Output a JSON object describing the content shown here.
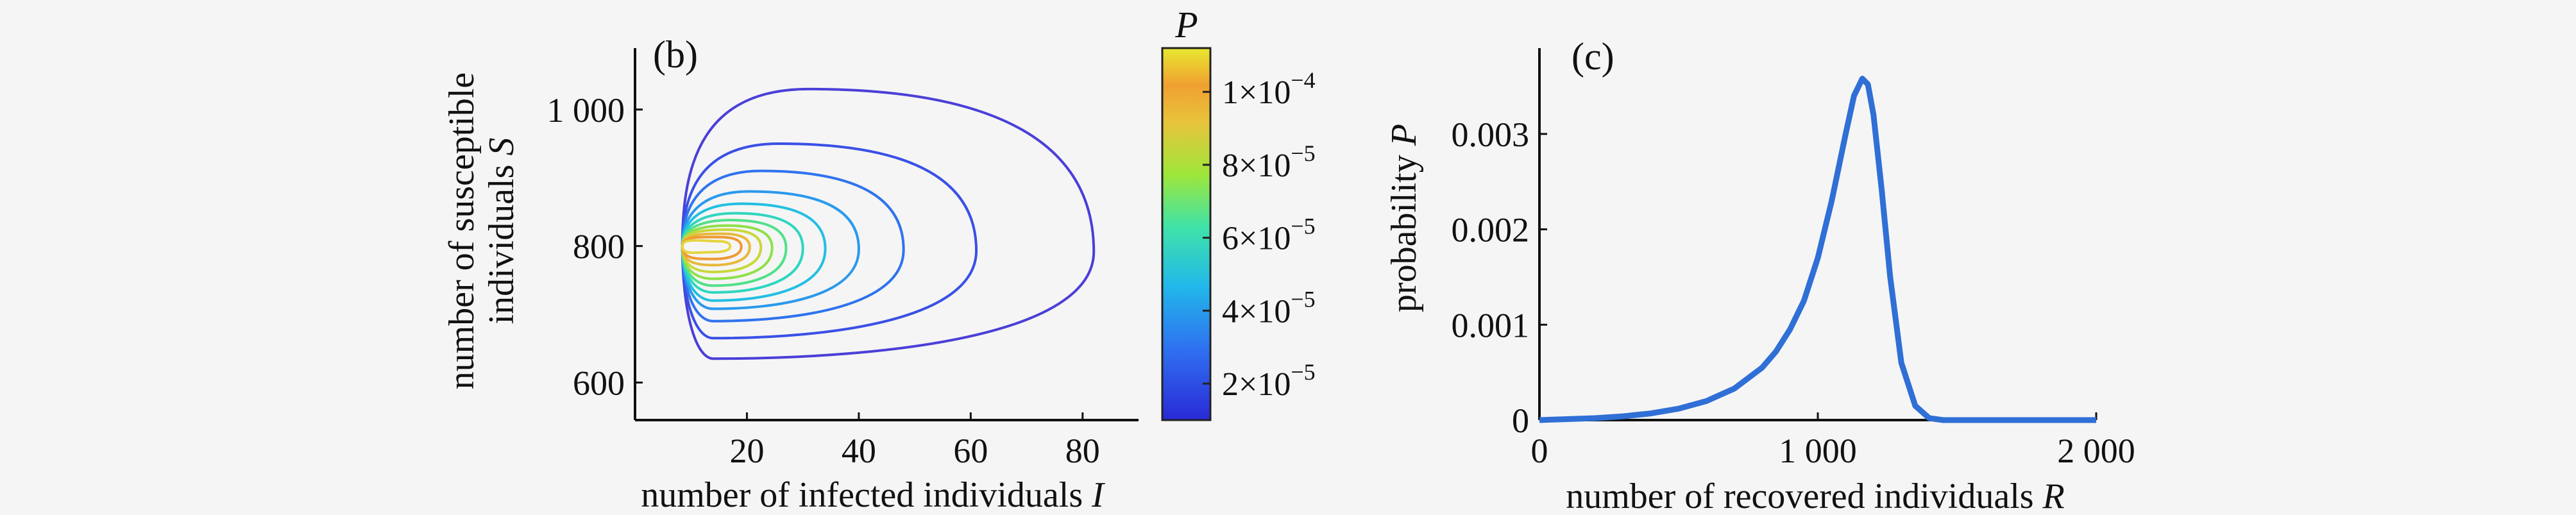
{
  "chart_data": [
    {
      "panel": "(b)",
      "type": "contour",
      "x": {
        "label": "number of infected individuals",
        "symbol": "I",
        "ticks": [
          20,
          40,
          60,
          80
        ],
        "range": [
          0,
          90
        ]
      },
      "y": {
        "label_line1": "number of susceptible",
        "label_line2": "individuals",
        "symbol": "S",
        "ticks": [
          600,
          800,
          1000
        ],
        "tick_labels": [
          "600",
          "800",
          "1 000"
        ],
        "range": [
          545,
          1090
        ]
      },
      "colorbar": {
        "title": "P",
        "ticks": [
          {
            "mantissa": "2",
            "exponent": "−5",
            "value": 2e-05
          },
          {
            "mantissa": "4",
            "exponent": "−5",
            "value": 4e-05
          },
          {
            "mantissa": "6",
            "exponent": "−5",
            "value": 6e-05
          },
          {
            "mantissa": "8",
            "exponent": "−5",
            "value": 8e-05
          },
          {
            "mantissa": "1",
            "exponent": "−4",
            "value": 0.0001
          }
        ],
        "range": [
          1e-05,
          0.000112
        ],
        "colormap": [
          "#2a2ad6",
          "#2f6cf0",
          "#22b8ea",
          "#3fe3a8",
          "#9ee63a",
          "#e8c43c",
          "#f0a030",
          "#e8e830"
        ]
      },
      "peak": {
        "I": 14,
        "S": 800
      },
      "contours": [
        {
          "level": 1.5e-05,
          "color": "#4b3fd8",
          "right_I": 82,
          "top_S": 1030,
          "bottom_S": 635
        },
        {
          "level": 2.3e-05,
          "color": "#3a50e6",
          "right_I": 61,
          "top_S": 950,
          "bottom_S": 665
        },
        {
          "level": 3.1e-05,
          "color": "#2f73ee",
          "right_I": 48,
          "top_S": 910,
          "bottom_S": 690
        },
        {
          "level": 3.9e-05,
          "color": "#2a99ec",
          "right_I": 40,
          "top_S": 880,
          "bottom_S": 708
        },
        {
          "level": 4.7e-05,
          "color": "#22bfe2",
          "right_I": 34,
          "top_S": 862,
          "bottom_S": 720
        },
        {
          "level": 5.5e-05,
          "color": "#2ed6c0",
          "right_I": 30,
          "top_S": 848,
          "bottom_S": 732
        },
        {
          "level": 6.3e-05,
          "color": "#52e08a",
          "right_I": 27,
          "top_S": 838,
          "bottom_S": 742
        },
        {
          "level": 7.1e-05,
          "color": "#8fe04a",
          "right_I": 24.5,
          "top_S": 830,
          "bottom_S": 752
        },
        {
          "level": 7.9e-05,
          "color": "#c8d83a",
          "right_I": 22.5,
          "top_S": 824,
          "bottom_S": 762
        },
        {
          "level": 8.7e-05,
          "color": "#e8b83c",
          "right_I": 20.5,
          "top_S": 818,
          "bottom_S": 772
        },
        {
          "level": 9.5e-05,
          "color": "#ee9a34",
          "right_I": 19,
          "top_S": 813,
          "bottom_S": 781
        },
        {
          "level": 0.000105,
          "color": "#e5d540",
          "right_I": 17,
          "top_S": 807,
          "bottom_S": 791
        }
      ]
    },
    {
      "panel": "(c)",
      "type": "line",
      "x": {
        "label": "number of  recovered individuals",
        "symbol": "R",
        "ticks": [
          0,
          1000,
          2000
        ],
        "tick_labels": [
          "0",
          "1 000",
          "2 000"
        ],
        "range": [
          0,
          2000
        ]
      },
      "y": {
        "label": "probability",
        "symbol": "P",
        "ticks": [
          0,
          0.001,
          0.002,
          0.003
        ],
        "tick_labels": [
          "0",
          "0.001",
          "0.002",
          "0.003"
        ],
        "range": [
          0,
          0.0039
        ]
      },
      "series": [
        {
          "color": "#2f6fd6",
          "x": [
            0,
            100,
            200,
            300,
            400,
            500,
            600,
            700,
            800,
            850,
            900,
            950,
            1000,
            1050,
            1100,
            1130,
            1160,
            1180,
            1200,
            1230,
            1260,
            1300,
            1350,
            1400,
            1450,
            1500,
            1600,
            1800,
            2000
          ],
          "y": [
            0,
            1e-05,
            2e-05,
            4e-05,
            7e-05,
            0.00012,
            0.0002,
            0.00033,
            0.00055,
            0.00072,
            0.00095,
            0.00125,
            0.0017,
            0.0023,
            0.003,
            0.0034,
            0.00358,
            0.00352,
            0.0032,
            0.0024,
            0.0015,
            0.0006,
            0.00015,
            2e-05,
            0.0,
            0.0,
            0.0,
            0.0,
            0.0
          ]
        }
      ]
    }
  ]
}
